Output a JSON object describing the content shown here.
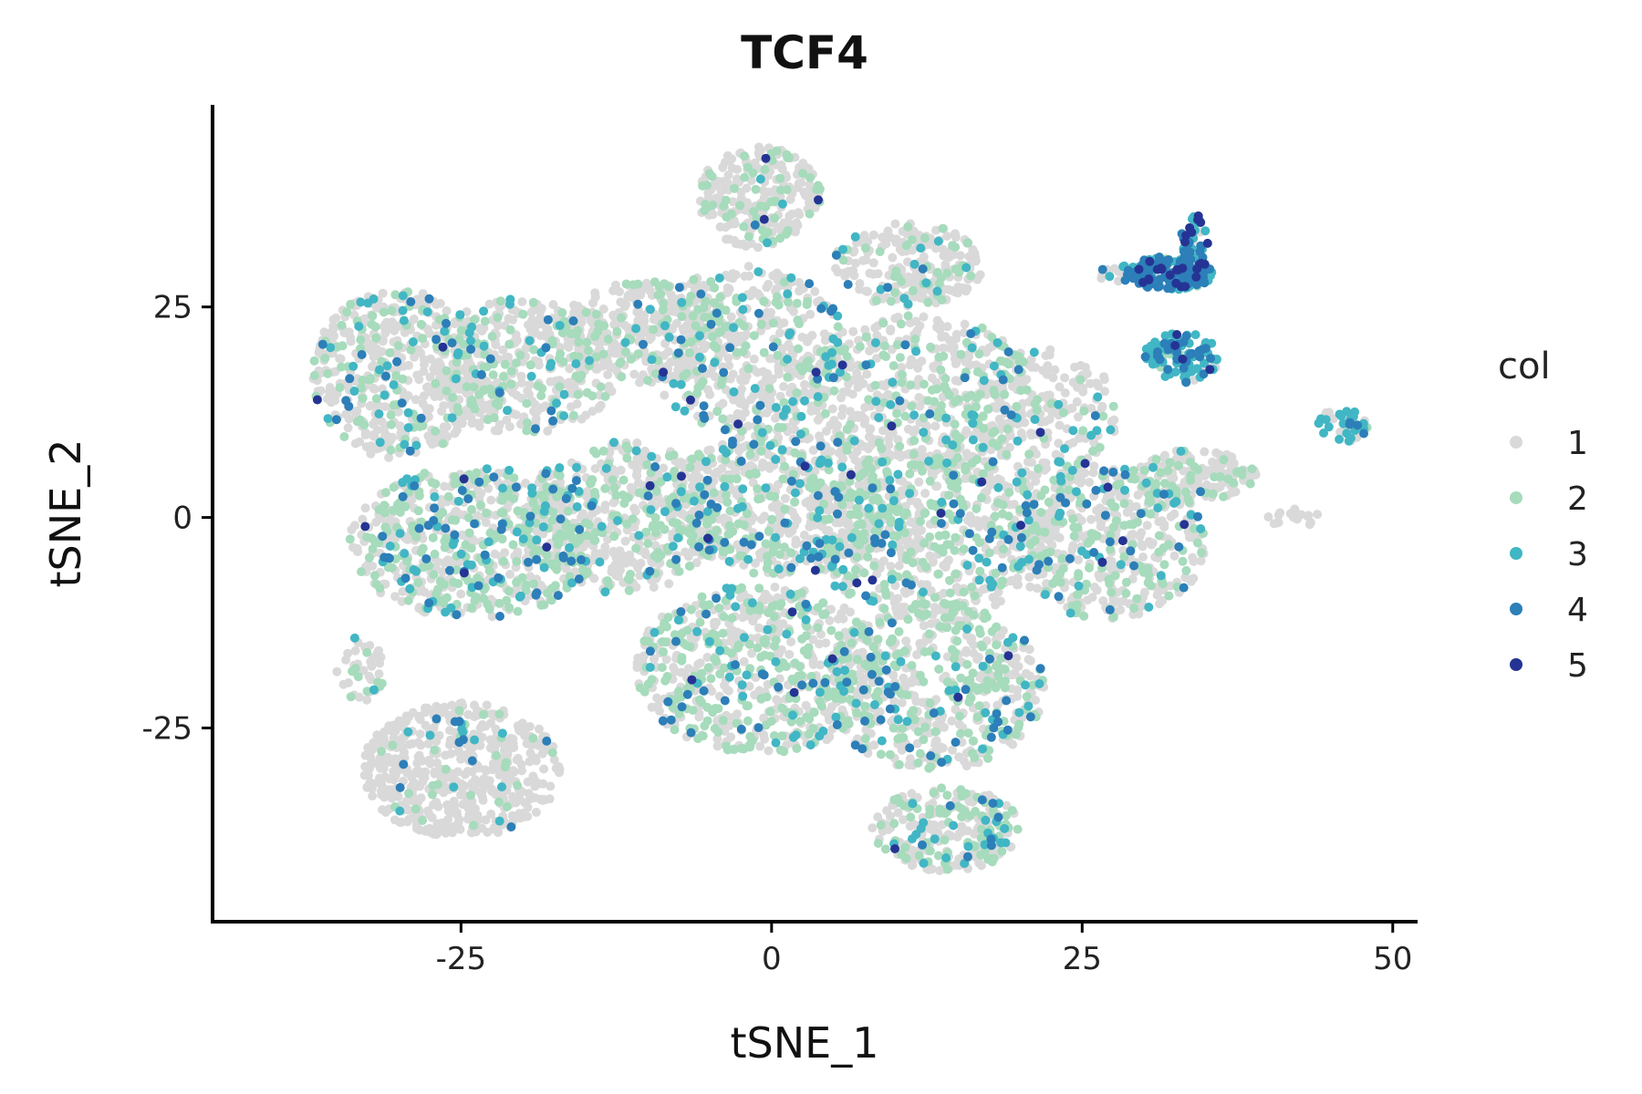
{
  "chart_data": {
    "type": "scatter",
    "title": "TCF4",
    "xlabel": "tSNE_1",
    "ylabel": "tSNE_2",
    "xlim": [
      -45,
      52
    ],
    "ylim": [
      -48,
      49
    ],
    "xticks": [
      -25,
      0,
      25,
      50
    ],
    "yticks": [
      -25,
      0,
      25
    ],
    "grid": false,
    "legend": {
      "title": "col",
      "placement": "right",
      "entries": [
        {
          "label": "1",
          "color": "#D9D9D9"
        },
        {
          "label": "2",
          "color": "#A6DBBC"
        },
        {
          "label": "3",
          "color": "#41B6C4"
        },
        {
          "label": "4",
          "color": "#2C7FB8"
        },
        {
          "label": "5",
          "color": "#253494"
        }
      ]
    },
    "regions": [
      {
        "cx": -30,
        "cy": 17,
        "rx": 7,
        "ry": 10,
        "n": 500,
        "w": [
          0.72,
          0.2,
          0.05,
          0.025,
          0.005
        ]
      },
      {
        "cx": -20,
        "cy": 18,
        "rx": 8,
        "ry": 8,
        "n": 420,
        "w": [
          0.72,
          0.2,
          0.05,
          0.025,
          0.005
        ]
      },
      {
        "cx": -10,
        "cy": 22,
        "rx": 7,
        "ry": 6,
        "n": 300,
        "w": [
          0.75,
          0.18,
          0.04,
          0.025,
          0.005
        ]
      },
      {
        "cx": -1,
        "cy": 38,
        "rx": 5,
        "ry": 6,
        "n": 260,
        "w": [
          0.78,
          0.17,
          0.035,
          0.01,
          0.005
        ]
      },
      {
        "cx": -2,
        "cy": 20,
        "rx": 8,
        "ry": 10,
        "n": 500,
        "w": [
          0.68,
          0.22,
          0.06,
          0.03,
          0.01
        ]
      },
      {
        "cx": 11,
        "cy": 30,
        "rx": 6,
        "ry": 5,
        "n": 250,
        "w": [
          0.78,
          0.17,
          0.03,
          0.015,
          0.005
        ]
      },
      {
        "cx": 12,
        "cy": 15,
        "rx": 9,
        "ry": 9,
        "n": 480,
        "w": [
          0.72,
          0.2,
          0.05,
          0.025,
          0.005
        ]
      },
      {
        "cx": 22,
        "cy": 12,
        "rx": 6,
        "ry": 8,
        "n": 240,
        "w": [
          0.74,
          0.18,
          0.05,
          0.025,
          0.005
        ]
      },
      {
        "cx": -24,
        "cy": -3,
        "rx": 10,
        "ry": 9,
        "n": 650,
        "w": [
          0.58,
          0.33,
          0.05,
          0.035,
          0.005
        ]
      },
      {
        "cx": -12,
        "cy": 0,
        "rx": 8,
        "ry": 9,
        "n": 500,
        "w": [
          0.62,
          0.28,
          0.06,
          0.035,
          0.005
        ]
      },
      {
        "cx": 1,
        "cy": 2,
        "rx": 9,
        "ry": 9,
        "n": 600,
        "w": [
          0.6,
          0.28,
          0.07,
          0.045,
          0.005
        ]
      },
      {
        "cx": 13,
        "cy": -2,
        "rx": 10,
        "ry": 10,
        "n": 650,
        "w": [
          0.6,
          0.28,
          0.07,
          0.045,
          0.005
        ]
      },
      {
        "cx": 27,
        "cy": -3,
        "rx": 8,
        "ry": 9,
        "n": 480,
        "w": [
          0.64,
          0.26,
          0.06,
          0.035,
          0.005
        ]
      },
      {
        "cx": 34,
        "cy": 5,
        "rx": 5,
        "ry": 3,
        "n": 170,
        "w": [
          0.8,
          0.17,
          0.02,
          0.01,
          0
        ]
      },
      {
        "cx": -1,
        "cy": -18,
        "rx": 10,
        "ry": 10,
        "n": 650,
        "w": [
          0.56,
          0.33,
          0.06,
          0.045,
          0.005
        ]
      },
      {
        "cx": 13,
        "cy": -20,
        "rx": 9,
        "ry": 10,
        "n": 550,
        "w": [
          0.58,
          0.31,
          0.06,
          0.045,
          0.005
        ]
      },
      {
        "cx": 14,
        "cy": -37,
        "rx": 6,
        "ry": 5,
        "n": 260,
        "w": [
          0.56,
          0.3,
          0.09,
          0.045,
          0.005
        ]
      },
      {
        "cx": -25,
        "cy": -30,
        "rx": 8,
        "ry": 8,
        "n": 560,
        "w": [
          0.9,
          0.05,
          0.03,
          0.02,
          0
        ]
      },
      {
        "cx": -33,
        "cy": -18,
        "rx": 2,
        "ry": 4,
        "n": 40,
        "w": [
          0.8,
          0.15,
          0.05,
          0,
          0
        ]
      },
      {
        "cx": 28,
        "cy": 29,
        "rx": 2,
        "ry": 1,
        "n": 20,
        "w": [
          0.55,
          0.1,
          0.2,
          0.1,
          0.05
        ]
      },
      {
        "cx": 32,
        "cy": 29,
        "rx": 3.5,
        "ry": 2,
        "n": 170,
        "w": [
          0.03,
          0.05,
          0.37,
          0.45,
          0.1
        ]
      },
      {
        "cx": 34,
        "cy": 33,
        "rx": 1.2,
        "ry": 3,
        "n": 40,
        "w": [
          0.05,
          0.05,
          0.35,
          0.45,
          0.1
        ]
      },
      {
        "cx": 33,
        "cy": 19,
        "rx": 3,
        "ry": 3,
        "n": 110,
        "w": [
          0.15,
          0.1,
          0.55,
          0.18,
          0.02
        ]
      },
      {
        "cx": 46,
        "cy": 11,
        "rx": 2,
        "ry": 2,
        "n": 45,
        "w": [
          0.5,
          0.05,
          0.35,
          0.1,
          0
        ]
      },
      {
        "cx": 42,
        "cy": 0,
        "rx": 2.5,
        "ry": 1,
        "n": 18,
        "w": [
          1,
          0,
          0,
          0,
          0
        ]
      }
    ]
  }
}
